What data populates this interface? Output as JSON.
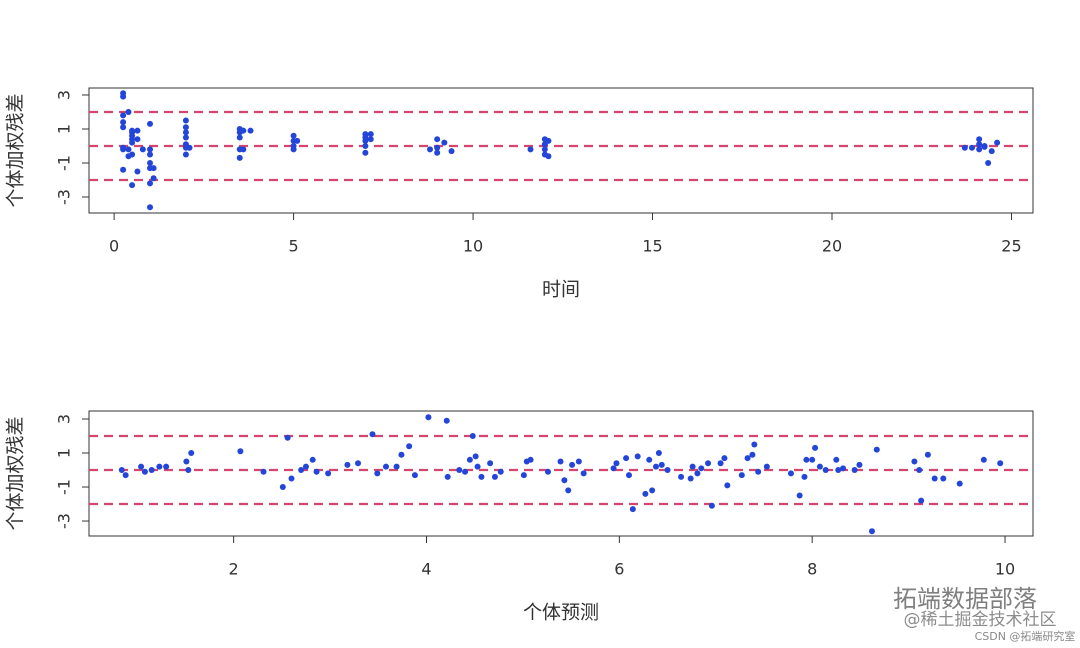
{
  "chart_data": [
    {
      "type": "scatter",
      "xlabel": "时间",
      "ylabel": "个体加权残差",
      "color": "#2446d8",
      "hline_color": "#d6456e",
      "xlim": [
        -0.7,
        25.6
      ],
      "ylim": [
        -3.94,
        3.41
      ],
      "xticks": [
        0,
        5,
        10,
        15,
        20,
        25
      ],
      "yticks": [
        3,
        1,
        -1,
        -3
      ],
      "hlines": [
        -2,
        0,
        2
      ],
      "x": [
        0.25,
        0.25,
        0.25,
        0.25,
        0.25,
        0.25,
        0.25,
        0.25,
        0.4,
        0.4,
        0.4,
        0.5,
        0.5,
        0.5,
        0.5,
        0.5,
        0.5,
        0.5,
        0.65,
        0.65,
        0.65,
        0.8,
        1.0,
        1.0,
        1.0,
        1.0,
        1.0,
        1.0,
        1.0,
        1.1,
        1.1,
        2.0,
        2.0,
        2.0,
        2.0,
        2.0,
        2.0,
        2.0,
        2.1,
        3.5,
        3.5,
        3.5,
        3.5,
        3.5,
        3.6,
        3.6,
        3.8,
        5.0,
        5.0,
        5.0,
        5.0,
        5.1,
        7.0,
        7.0,
        7.0,
        7.0,
        7.0,
        7.15,
        7.15,
        8.8,
        9.0,
        9.0,
        9.0,
        9.2,
        9.4,
        11.6,
        12.0,
        12.0,
        12.0,
        12.0,
        12.1,
        12.1,
        23.7,
        23.9,
        24.1,
        24.1,
        24.1,
        24.25,
        24.25,
        24.35,
        24.45,
        24.6
      ],
      "values": [
        3.1,
        2.9,
        1.8,
        1.4,
        1.1,
        -0.1,
        -0.2,
        -1.4,
        2.0,
        -0.2,
        -0.6,
        0.9,
        0.8,
        0.6,
        0.4,
        0.2,
        -0.5,
        -2.3,
        0.9,
        0.4,
        -1.5,
        -0.2,
        1.3,
        -0.2,
        -0.5,
        -1.0,
        -1.3,
        -2.2,
        -3.6,
        -1.3,
        -1.9,
        1.5,
        1.1,
        0.8,
        0.5,
        0.1,
        -0.1,
        -0.5,
        -0.1,
        1.0,
        0.8,
        0.5,
        -0.2,
        -0.7,
        0.9,
        -0.2,
        0.9,
        0.6,
        0.3,
        0,
        -0.2,
        0.3,
        0.7,
        0.5,
        0.3,
        0,
        -0.4,
        0.7,
        0.4,
        -0.2,
        0.4,
        -0.1,
        -0.4,
        0.2,
        -0.3,
        -0.2,
        0.4,
        0.1,
        -0.2,
        -0.5,
        0.3,
        -0.6,
        -0.1,
        -0.1,
        0.4,
        0.1,
        -0.2,
        0,
        -0.05,
        -1.0,
        -0.3,
        0.2
      ]
    },
    {
      "type": "scatter",
      "xlabel": "个体预测",
      "ylabel": "个体加权残差",
      "color": "#2446d8",
      "hline_color": "#d6456e",
      "xlim": [
        0.5,
        10.29
      ],
      "ylim": [
        -3.88,
        3.47
      ],
      "xticks": [
        2,
        4,
        6,
        8,
        10
      ],
      "yticks": [
        3,
        1,
        -1,
        -3
      ],
      "hlines": [
        -2,
        0,
        2
      ],
      "x": [
        0.84,
        0.88,
        1.04,
        1.08,
        1.15,
        1.23,
        1.3,
        1.51,
        1.53,
        1.56,
        2.07,
        2.31,
        2.51,
        2.56,
        2.6,
        2.7,
        2.75,
        2.82,
        2.86,
        2.98,
        3.18,
        3.29,
        3.44,
        3.49,
        3.58,
        3.69,
        3.74,
        3.82,
        3.88,
        4.02,
        4.21,
        4.22,
        4.34,
        4.4,
        4.45,
        4.48,
        4.51,
        4.53,
        4.57,
        4.66,
        4.71,
        4.77,
        5.01,
        5.04,
        5.08,
        5.26,
        5.39,
        5.43,
        5.47,
        5.51,
        5.58,
        5.63,
        5.94,
        5.97,
        6.07,
        6.1,
        6.14,
        6.19,
        6.27,
        6.31,
        6.34,
        6.38,
        6.41,
        6.44,
        6.5,
        6.64,
        6.74,
        6.76,
        6.81,
        6.85,
        6.92,
        6.96,
        7.05,
        7.09,
        7.12,
        7.27,
        7.33,
        7.38,
        7.4,
        7.44,
        7.53,
        7.78,
        7.87,
        7.92,
        7.94,
        8.0,
        8.03,
        8.08,
        8.14,
        8.25,
        8.27,
        8.32,
        8.44,
        8.49,
        8.62,
        8.67,
        9.06,
        9.11,
        9.13,
        9.2,
        9.27,
        9.36,
        9.53,
        9.78,
        9.95
      ],
      "values": [
        0,
        -0.3,
        0.2,
        -0.1,
        0,
        0.2,
        0.2,
        0.5,
        0,
        1.0,
        1.1,
        -0.1,
        -1.0,
        1.9,
        -0.5,
        0,
        0.2,
        0.6,
        -0.1,
        -0.2,
        0.3,
        0.4,
        2.1,
        -0.2,
        0.2,
        0.2,
        0.9,
        1.4,
        -0.3,
        3.1,
        2.9,
        -0.4,
        0,
        -0.1,
        0.6,
        2.0,
        0.8,
        0.2,
        -0.4,
        0.4,
        -0.4,
        -0.1,
        -0.3,
        0.5,
        0.6,
        -0.1,
        0.5,
        -0.6,
        -1.2,
        0.3,
        0.5,
        -0.2,
        0.1,
        0.4,
        0.7,
        -0.3,
        -2.3,
        0.8,
        -1.4,
        0.6,
        -1.2,
        0.2,
        1.0,
        0.3,
        0,
        -0.4,
        -0.5,
        0.2,
        -0.2,
        0.1,
        0.4,
        -2.1,
        0.4,
        0.7,
        -0.9,
        -0.3,
        0.7,
        0.9,
        1.5,
        -0.1,
        0.2,
        -0.2,
        -1.5,
        -0.4,
        0.6,
        0.6,
        1.3,
        0.2,
        0,
        0.6,
        0,
        0.1,
        0,
        0.3,
        -3.6,
        1.2,
        0.5,
        0,
        -1.8,
        0.9,
        -0.5,
        -0.5,
        -0.8,
        0.6,
        0.4
      ]
    }
  ],
  "watermark": [
    "拓端数据部落",
    "@稀土掘金技术社区",
    "CSDN @拓端研究室"
  ]
}
